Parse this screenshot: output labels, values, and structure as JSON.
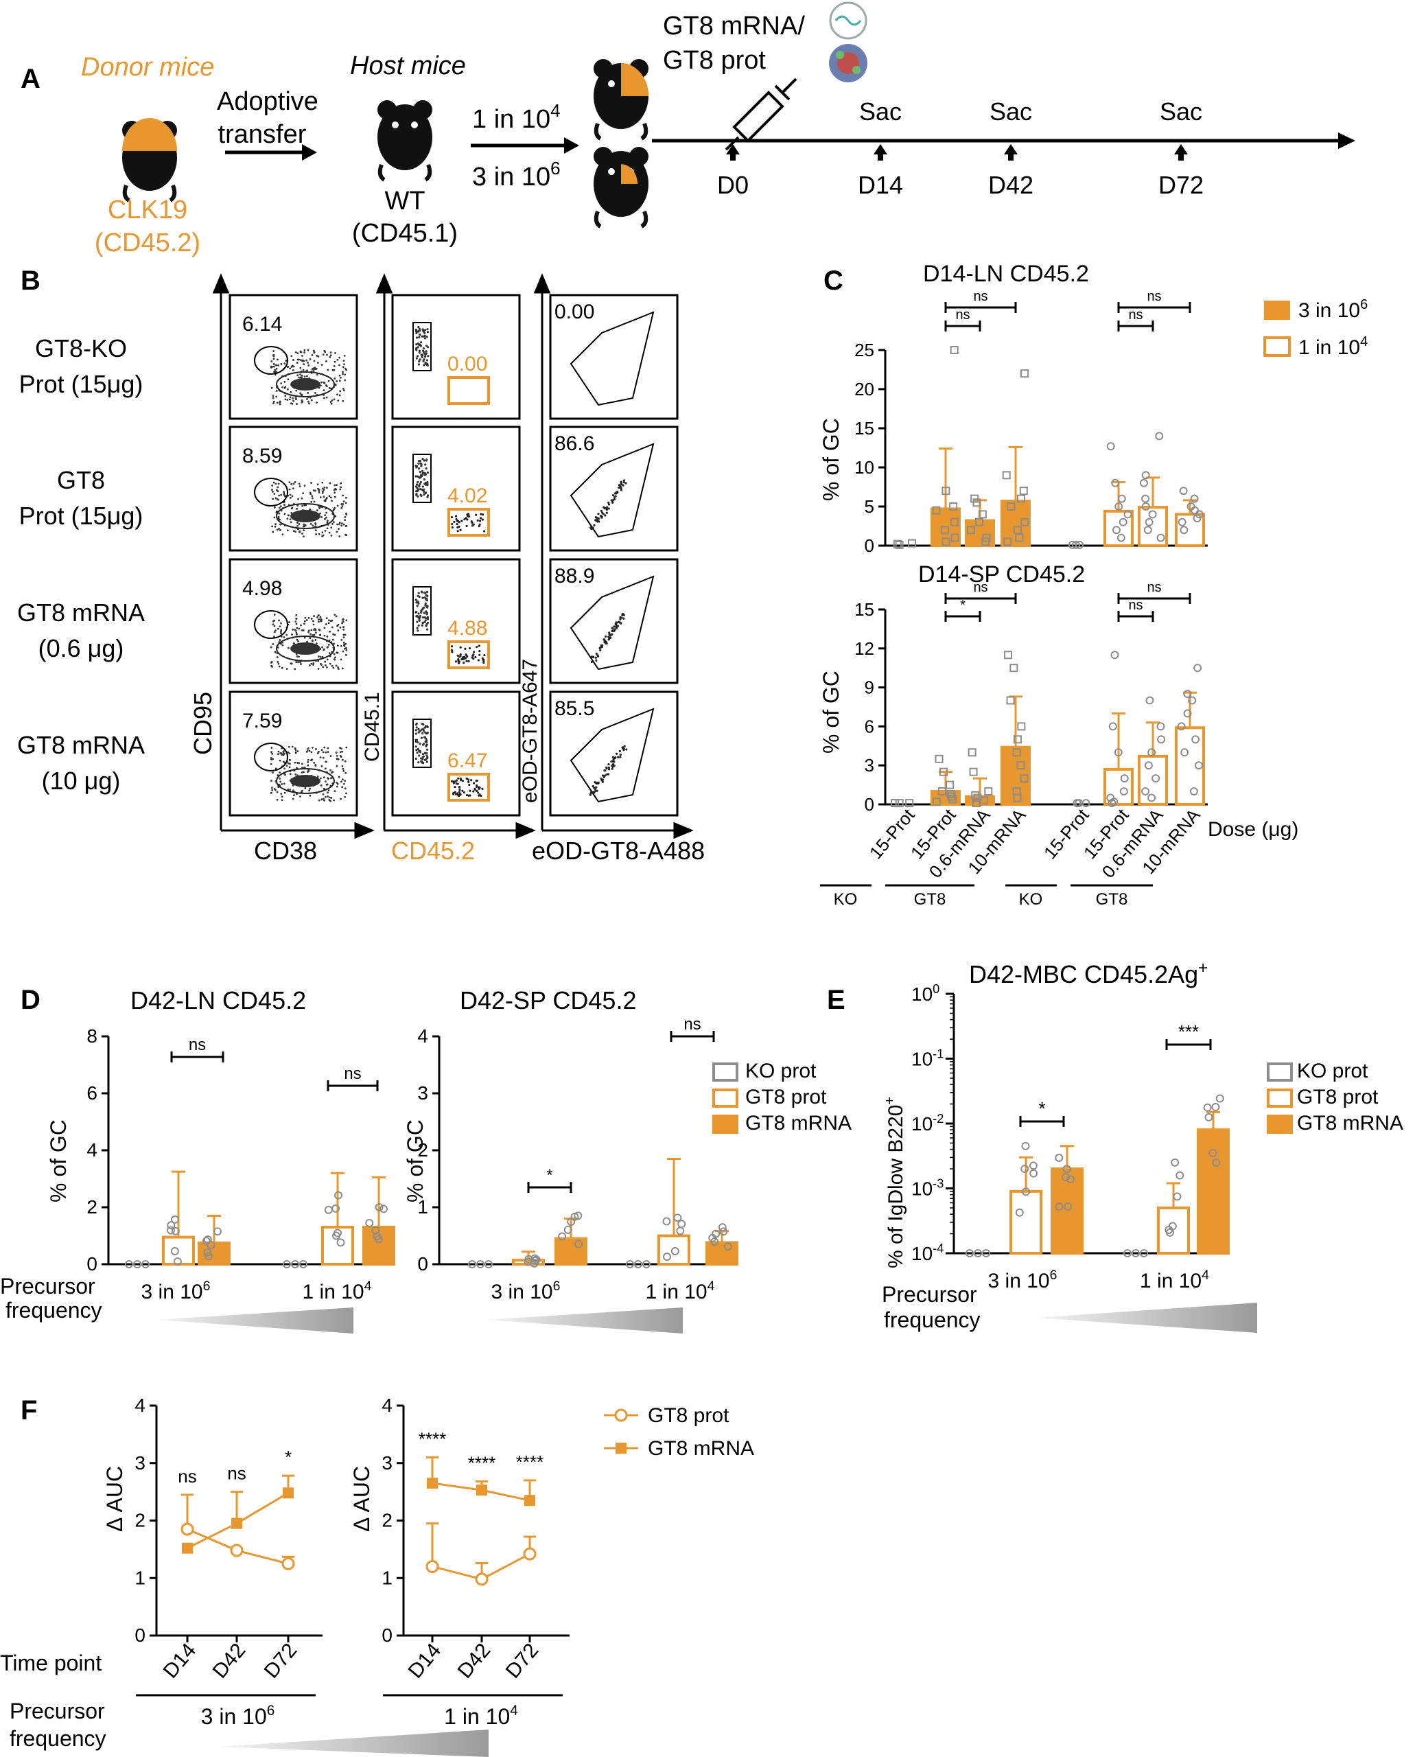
{
  "colors": {
    "orange": "#E8962E",
    "gray": "#8C8C8C",
    "black": "#000000",
    "darkgray": "#555555"
  },
  "panelA": {
    "letter": "A",
    "donor_label": "Donor mice",
    "adoptive_1": "Adoptive",
    "adoptive_2": "transfer",
    "donor_strain_1": "CLK19",
    "donor_strain_2": "(CD45.2)",
    "host_label": "Host mice",
    "host_strain_1": "WT",
    "host_strain_2": "(CD45.1)",
    "freq_hi_base": "1 in 10",
    "freq_hi_exp": "4",
    "freq_lo_base": "3 in 10",
    "freq_lo_exp": "6",
    "imm_1": "GT8 mRNA/",
    "imm_2": "GT8  prot",
    "sac": "Sac",
    "days": [
      "D0",
      "D14",
      "D42",
      "D72"
    ]
  },
  "panelB": {
    "letter": "B",
    "rows": [
      {
        "l1": "GT8-KO",
        "l2": "Prot (15μg)",
        "g1": "6.14",
        "g2": "0.00",
        "g3": "0.00"
      },
      {
        "l1": "GT8",
        "l2": "Prot (15μg)",
        "g1": "8.59",
        "g2": "4.02",
        "g3": "86.6"
      },
      {
        "l1": "GT8 mRNA",
        "l2": "(0.6 μg)",
        "g1": "4.98",
        "g2": "4.88",
        "g3": "88.9"
      },
      {
        "l1": "GT8 mRNA",
        "l2": "(10 μg)",
        "g1": "7.59",
        "g2": "6.47",
        "g3": "85.5"
      }
    ],
    "y1": "CD95",
    "x1": "CD38",
    "y2": "CD45.1",
    "x2": "CD45.2",
    "y3": "eOD-GT8-A647",
    "x3": "eOD-GT8-A488"
  },
  "panelC": {
    "letter": "C",
    "top_title": "D14-LN CD45.2",
    "bottom_title": "D14-SP CD45.2",
    "ylabel": "% of GC",
    "top_ticks": [
      "0",
      "5",
      "10",
      "15",
      "20",
      "25"
    ],
    "bottom_ticks": [
      "0",
      "3",
      "6",
      "9",
      "12",
      "15"
    ],
    "categories": [
      "15-Prot",
      "15-Prot",
      "0.6-mRNA",
      "10-mRNA",
      "15-Prot",
      "15-Prot",
      "0.6-mRNA",
      "10-mRNA"
    ],
    "dose_label": "Dose (μg)",
    "groups": [
      "KO",
      "GT8",
      "KO",
      "GT8"
    ],
    "legend": [
      {
        "base": "3 in 10",
        "exp": "6"
      },
      {
        "base": "1 in 10",
        "exp": "4"
      }
    ],
    "sig_top": [
      "ns",
      "ns",
      "ns",
      "ns"
    ],
    "sig_bottom": [
      "*",
      "ns",
      "ns",
      "ns"
    ]
  },
  "panelD": {
    "letter": "D",
    "left_title": "D42-LN CD45.2",
    "right_title": "D42-SP CD45.2",
    "ylabel": "% of GC",
    "left_ticks": [
      "0",
      "2",
      "4",
      "6",
      "8"
    ],
    "right_ticks": [
      "0",
      "1",
      "2",
      "3",
      "4"
    ],
    "precursor_1": "Precursor",
    "precursor_2": "frequency",
    "xgroups": [
      {
        "base": "3 in 10",
        "exp": "6"
      },
      {
        "base": "1 in 10",
        "exp": "4"
      }
    ],
    "sig_left": [
      "ns",
      "ns"
    ],
    "sig_right": [
      "*",
      "ns"
    ],
    "legend": [
      "KO  prot",
      "GT8 prot",
      "GT8 mRNA"
    ]
  },
  "panelE": {
    "letter": "E",
    "title_base": "D42-MBC CD45.2Ag",
    "title_sup": "+",
    "ylabel_base": "% of IgDlow B220",
    "ylabel_sup": "+",
    "ticks": [
      {
        "b": "10",
        "e": "-4"
      },
      {
        "b": "10",
        "e": "-3"
      },
      {
        "b": "10",
        "e": "-2"
      },
      {
        "b": "10",
        "e": "-1"
      },
      {
        "b": "10",
        "e": "0"
      }
    ],
    "sig": [
      "*",
      "***"
    ],
    "legend": [
      "KO  prot",
      "GT8 prot",
      "GT8 mRNA"
    ],
    "precursor_1": "Precursor",
    "precursor_2": "frequency"
  },
  "panelF": {
    "letter": "F",
    "ylabel": "Δ AUC",
    "ticks": [
      "0",
      "1",
      "2",
      "3",
      "4"
    ],
    "timepoints": [
      "D14",
      "D42",
      "D72"
    ],
    "time_label": "Time point",
    "precursor_1": "Precursor",
    "precursor_2": "frequency",
    "groups": [
      {
        "base": "3 in 10",
        "exp": "6"
      },
      {
        "base": "1 in 10",
        "exp": "4"
      }
    ],
    "sig_left": [
      "ns",
      "ns",
      "*"
    ],
    "sig_right": [
      "****",
      "****",
      "****"
    ],
    "legend": [
      "GT8 prot",
      "GT8 mRNA"
    ]
  },
  "chart_data": [
    {
      "type": "bar",
      "panel": "C-top",
      "title": "D14-LN CD45.2",
      "ylabel": "% of GC",
      "ylim": [
        0,
        25
      ],
      "categories": [
        "KO 15-Prot",
        "GT8 15-Prot",
        "GT8 0.6-mRNA",
        "GT8 10-mRNA"
      ],
      "series": [
        {
          "name": "3 in 10^6",
          "values": [
            0.2,
            4.7,
            3.2,
            5.7
          ],
          "err": [
            0,
            7.7,
            2.6,
            6.9
          ],
          "points": [
            [
              0.1,
              0.2,
              0.3
            ],
            [
              0.5,
              1,
              2,
              3,
              4.5,
              5,
              7,
              25
            ],
            [
              0.5,
              1,
              2,
              3,
              4,
              5.5,
              6
            ],
            [
              0.5,
              1,
              2,
              3,
              5,
              6,
              7,
              9,
              22
            ]
          ]
        },
        {
          "name": "1 in 10^4",
          "values": [
            0.1,
            4.4,
            4.9,
            4.0
          ],
          "err": [
            0,
            3.7,
            3.8,
            1.8
          ],
          "points": [
            [
              0.1,
              0.1,
              0.1
            ],
            [
              1,
              2,
              3,
              4,
              5,
              6,
              8,
              12.7
            ],
            [
              1,
              2,
              3,
              4,
              5,
              6,
              8,
              9,
              14
            ],
            [
              2,
              3,
              3.5,
              4,
              4.5,
              5,
              6,
              7
            ]
          ]
        }
      ]
    },
    {
      "type": "bar",
      "panel": "C-bottom",
      "title": "D14-SP CD45.2",
      "ylabel": "% of GC",
      "ylim": [
        0,
        15
      ],
      "categories": [
        "KO 15-Prot",
        "GT8 15-Prot",
        "GT8 0.6-mRNA",
        "GT8 10-mRNA"
      ],
      "series": [
        {
          "name": "3 in 10^6",
          "values": [
            0.1,
            1.0,
            0.6,
            4.4
          ],
          "err": [
            0,
            1.5,
            1.4,
            3.9
          ],
          "points": [
            [
              0.1,
              0.1,
              0.1
            ],
            [
              0.2,
              0.4,
              0.6,
              0.8,
              1,
              1.5,
              2.5,
              3.5
            ],
            [
              0.1,
              0.3,
              0.5,
              0.7,
              1,
              2.5,
              4
            ],
            [
              0.5,
              1,
              2,
              3,
              4,
              5,
              6,
              8,
              10.5,
              11.5
            ]
          ]
        },
        {
          "name": "1 in 10^4",
          "values": [
            0.1,
            2.7,
            3.7,
            5.9
          ],
          "err": [
            0,
            4.3,
            2.6,
            2.7
          ],
          "points": [
            [
              0.1,
              0.1,
              0.1
            ],
            [
              0.1,
              0.2,
              0.5,
              1,
              2,
              4,
              6,
              11.5
            ],
            [
              0.5,
              1,
              2,
              3,
              4,
              5,
              6,
              8
            ],
            [
              1,
              3,
              4,
              5,
              6,
              7,
              8,
              8.5,
              10.5
            ]
          ]
        }
      ]
    },
    {
      "type": "bar",
      "panel": "D-left",
      "title": "D42-LN CD45.2",
      "ylabel": "% of GC",
      "ylim": [
        0,
        8
      ],
      "categories": [
        "3 in 10^6",
        "1 in 10^4"
      ],
      "series": [
        {
          "name": "KO  prot",
          "values": [
            0.0,
            0.0
          ]
        },
        {
          "name": "GT8 prot",
          "values": [
            0.95,
            1.3
          ],
          "err": [
            2.3,
            1.9
          ]
        },
        {
          "name": "GT8 mRNA",
          "values": [
            0.75,
            1.3
          ],
          "err": [
            0.95,
            1.75
          ]
        }
      ]
    },
    {
      "type": "bar",
      "panel": "D-right",
      "title": "D42-SP CD45.2",
      "ylabel": "% of GC",
      "ylim": [
        0,
        4
      ],
      "categories": [
        "3 in 10^6",
        "1 in 10^4"
      ],
      "series": [
        {
          "name": "KO  prot",
          "values": [
            0.0,
            0.0
          ]
        },
        {
          "name": "GT8 prot",
          "values": [
            0.07,
            0.5
          ],
          "err": [
            0.15,
            1.35
          ]
        },
        {
          "name": "GT8 mRNA",
          "values": [
            0.45,
            0.38
          ],
          "err": [
            0.35,
            0.2
          ]
        }
      ]
    },
    {
      "type": "bar",
      "panel": "E",
      "title": "D42-MBC CD45.2Ag+",
      "ylabel": "% of IgDlow B220+",
      "yscale": "log",
      "ylim": [
        0.0001,
        1
      ],
      "categories": [
        "3 in 10^6",
        "1 in 10^4"
      ],
      "series": [
        {
          "name": "KO  prot",
          "values": [
            0.0001,
            0.0001
          ]
        },
        {
          "name": "GT8 prot",
          "values": [
            0.0009,
            0.0005
          ],
          "err_top": [
            0.003,
            0.0012
          ]
        },
        {
          "name": "GT8 mRNA",
          "values": [
            0.002,
            0.008
          ],
          "err_top": [
            0.0045,
            0.015
          ]
        }
      ]
    },
    {
      "type": "line",
      "panel": "F-left",
      "ylabel": "Δ AUC",
      "ylim": [
        0,
        4
      ],
      "x": [
        "D14",
        "D42",
        "D72"
      ],
      "series": [
        {
          "name": "GT8 prot",
          "values": [
            1.85,
            1.48,
            1.25
          ],
          "err": [
            0.6,
            0,
            0.12
          ]
        },
        {
          "name": "GT8 mRNA",
          "values": [
            1.52,
            1.95,
            2.48
          ],
          "err": [
            0,
            0.55,
            0.3
          ]
        }
      ]
    },
    {
      "type": "line",
      "panel": "F-right",
      "ylabel": "Δ AUC",
      "ylim": [
        0,
        4
      ],
      "x": [
        "D14",
        "D42",
        "D72"
      ],
      "series": [
        {
          "name": "GT8 prot",
          "values": [
            1.2,
            0.98,
            1.42
          ],
          "err": [
            0.75,
            0.28,
            0.3
          ]
        },
        {
          "name": "GT8 mRNA",
          "values": [
            2.65,
            2.53,
            2.35
          ],
          "err": [
            0.45,
            0.15,
            0.35
          ]
        }
      ]
    }
  ]
}
